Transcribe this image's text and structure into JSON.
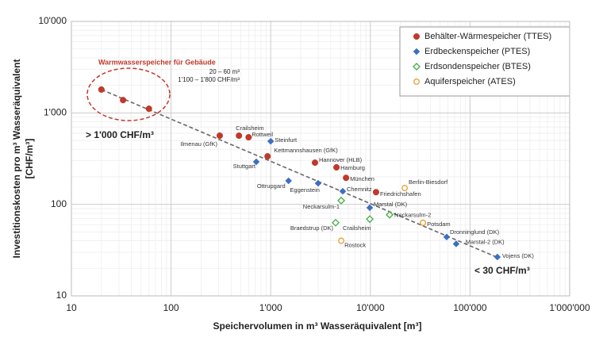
{
  "chart_data": {
    "type": "scatter",
    "x_label": "Speichervolumen in m³  Wasseräquivalent [m³]",
    "y_label": [
      "Investitionskosten pro m³ Wasseräquivalent",
      "[CHF/m³]"
    ],
    "x_scale": "log",
    "y_scale": "log",
    "xlim": [
      10,
      1000000
    ],
    "ylim": [
      10,
      10000
    ],
    "xticks": [
      10,
      100,
      {
        "value": 1000,
        "label": "1'000"
      },
      {
        "value": 10000,
        "label": "10'000"
      },
      {
        "value": 100000,
        "label": "100'000"
      },
      {
        "value": 1000000,
        "label": "1'000'000"
      }
    ],
    "yticks": [
      10,
      100,
      {
        "value": 1000,
        "label": "1'000"
      },
      {
        "value": 10000,
        "label": "10'000"
      }
    ],
    "grid": true,
    "minor_grid": true,
    "legend_position": "upper right",
    "annotations": {
      "group_title": "Warmwasserspeicher für Gebäude",
      "group_volume": "20 – 60 m³",
      "group_cost": "1'100 – 1'800 CHF/m³",
      "high_cost": "> 1'000 CHF/m³",
      "low_cost": "< 30 CHF/m³"
    },
    "series": [
      {
        "name": "Behälter-Wärmespeicher (TTES)",
        "color": "#c0392b",
        "marker": "circle",
        "filled": true,
        "x": [
          20,
          33,
          60,
          308,
          480,
          600,
          930,
          2780,
          4570,
          5700,
          11400
        ],
        "values": [
          1800,
          1380,
          1110,
          564,
          564,
          542,
          335,
          286,
          254,
          195,
          136
        ],
        "labels": [
          null,
          null,
          null,
          "Ilmenau (GfK)",
          "Crailsheim",
          "Rottweil",
          "Kettmannshausen (GfK)",
          "Hannover (HLB)",
          "Hamburg",
          "München",
          "Friedrichshafen"
        ]
      },
      {
        "name": "Erdbeckenspeicher (PTES)",
        "color": "#3b6fc4",
        "marker": "diamond",
        "filled": true,
        "x": [
          1000,
          716,
          1510,
          2990,
          5280,
          9860,
          58300,
          72600,
          188000
        ],
        "values": [
          490,
          292,
          181,
          170,
          139,
          92,
          44,
          37,
          26.6
        ],
        "labels": [
          "Steinfurt",
          "Stuttgart",
          "Ottrupgard",
          "Eggenstein",
          "Chemnitz",
          "Marstal (DK)",
          "Dronninglund (DK)",
          "Marstal-2 (DK)",
          "Vojens (DK)"
        ]
      },
      {
        "name": "Erdsondenspeicher (BTES)",
        "color": "#4caf50",
        "marker": "diamond",
        "filled": false,
        "x": [
          5100,
          4480,
          9860,
          15600
        ],
        "values": [
          110,
          63,
          69,
          77
        ],
        "labels": [
          "Neckarsulm-1",
          "Braedstrup (DK)",
          "Crailsheim",
          "Neckarsulm-2"
        ]
      },
      {
        "name": "Aquiferspeicher (ATES)",
        "color": "#e8a33d",
        "marker": "circle",
        "filled": false,
        "x": [
          22100,
          33700,
          5100
        ],
        "values": [
          151,
          63,
          40
        ],
        "labels": [
          "Berlin-Biesdorf",
          "Potsdam",
          "Rostock"
        ]
      }
    ]
  }
}
